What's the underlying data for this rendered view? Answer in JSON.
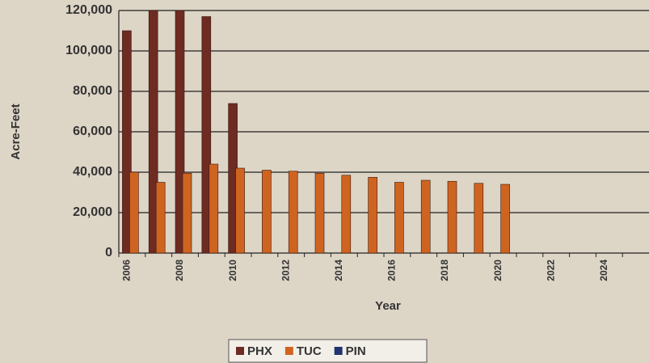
{
  "chart_data": {
    "type": "bar",
    "y_axis_label": "Acre-Feet",
    "x_axis_label": "Year",
    "categories": [
      "2006",
      null,
      "2008",
      null,
      "2010",
      null,
      "2012",
      null,
      "2014",
      null,
      "2016",
      null,
      "2018",
      null,
      "2020",
      null,
      "2022",
      null,
      "2024",
      null
    ],
    "series": [
      {
        "name": "PHX",
        "color": "#6e2b22",
        "values": [
          110000,
          120000,
          120000,
          117000,
          74000,
          null,
          null,
          null,
          null,
          null,
          null,
          null,
          null,
          null,
          null,
          null,
          null,
          null,
          null,
          null
        ]
      },
      {
        "name": "TUC",
        "color": "#cf6420",
        "values": [
          40000,
          35000,
          39500,
          44000,
          42000,
          41000,
          40500,
          39500,
          38500,
          37500,
          35000,
          36000,
          35500,
          34500,
          34000,
          null,
          null,
          null,
          null,
          null
        ]
      },
      {
        "name": "PIN",
        "color": "#1f3470",
        "values": [
          null,
          null,
          null,
          null,
          null,
          null,
          null,
          null,
          null,
          null,
          null,
          null,
          null,
          null,
          null,
          null,
          null,
          null,
          null,
          null
        ]
      }
    ],
    "ylim": [
      0,
      120000
    ],
    "yticks": [
      0,
      {
        "value": 20000,
        "label": "20,000"
      },
      {
        "value": 40000,
        "label": "40,000"
      },
      {
        "value": 60000,
        "label": "60,000"
      },
      {
        "value": 80000,
        "label": "80,000"
      },
      {
        "value": 100000,
        "label": "100,000"
      },
      {
        "value": 120000,
        "label": "120,000"
      }
    ],
    "grid": true
  }
}
